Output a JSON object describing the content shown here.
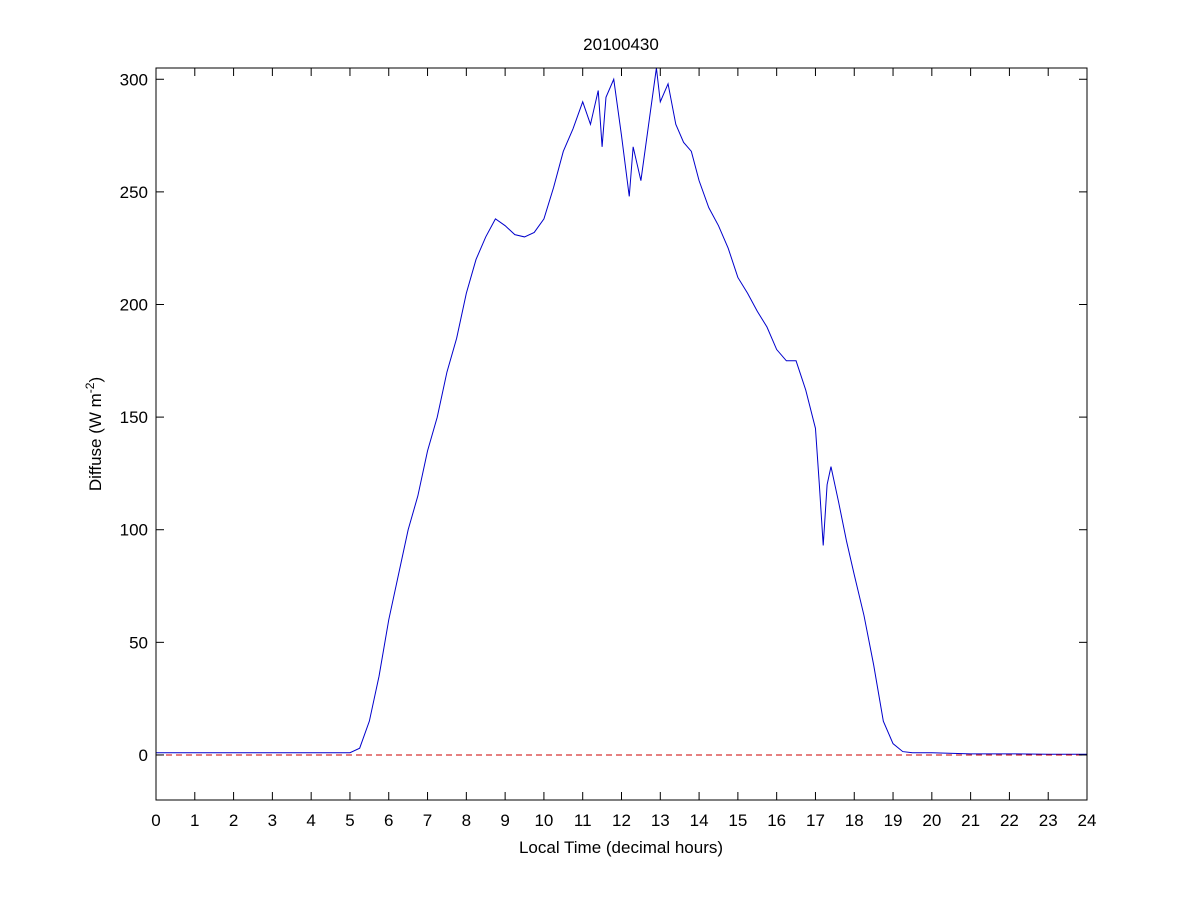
{
  "chart_data": {
    "type": "line",
    "title": "20100430",
    "xlabel": "Local Time (decimal hours)",
    "ylabel": [
      "Diffuse (W m",
      "-2",
      ")"
    ],
    "xlim": [
      0,
      24
    ],
    "xticks": [
      0,
      1,
      2,
      3,
      4,
      5,
      6,
      7,
      8,
      9,
      10,
      11,
      12,
      13,
      14,
      15,
      16,
      17,
      18,
      19,
      20,
      21,
      22,
      23,
      24
    ],
    "ylim": [
      -20,
      305
    ],
    "yticks": [
      0,
      50,
      100,
      150,
      200,
      250,
      300
    ],
    "grid": false,
    "series": [
      {
        "color": "#0000cc",
        "linestyle": "-",
        "x": [
          0,
          1,
          2,
          3,
          4,
          4.5,
          5,
          5.25,
          5.5,
          5.75,
          6,
          6.25,
          6.5,
          6.75,
          7,
          7.25,
          7.5,
          7.75,
          8,
          8.25,
          8.5,
          8.75,
          9,
          9.25,
          9.5,
          9.75,
          10,
          10.25,
          10.5,
          10.75,
          11,
          11.2,
          11.4,
          11.5,
          11.6,
          11.8,
          12,
          12.2,
          12.3,
          12.5,
          12.7,
          12.9,
          13,
          13.2,
          13.4,
          13.6,
          13.8,
          14,
          14.25,
          14.5,
          14.75,
          15,
          15.25,
          15.5,
          15.75,
          16,
          16.25,
          16.5,
          16.75,
          17,
          17.1,
          17.2,
          17.3,
          17.4,
          17.6,
          17.8,
          18,
          18.25,
          18.5,
          18.75,
          19,
          19.25,
          19.5,
          20,
          21,
          22,
          23,
          24
        ],
        "values": [
          1,
          1,
          1,
          1,
          1,
          1,
          1,
          3,
          15,
          35,
          60,
          80,
          100,
          115,
          135,
          150,
          170,
          185,
          205,
          220,
          230,
          238,
          235,
          231,
          230,
          232,
          238,
          252,
          268,
          278,
          290,
          280,
          295,
          270,
          292,
          300,
          275,
          248,
          270,
          255,
          280,
          305,
          290,
          298,
          280,
          272,
          268,
          255,
          243,
          235,
          225,
          212,
          205,
          197,
          190,
          180,
          175,
          175,
          162,
          145,
          120,
          93,
          120,
          128,
          112,
          95,
          80,
          62,
          40,
          15,
          5,
          1.5,
          1,
          1,
          0.5,
          0.5,
          0.3,
          0.3
        ]
      },
      {
        "color": "#cc0000",
        "linestyle": "--",
        "x": [
          0,
          24
        ],
        "values": [
          0,
          0
        ]
      }
    ]
  }
}
